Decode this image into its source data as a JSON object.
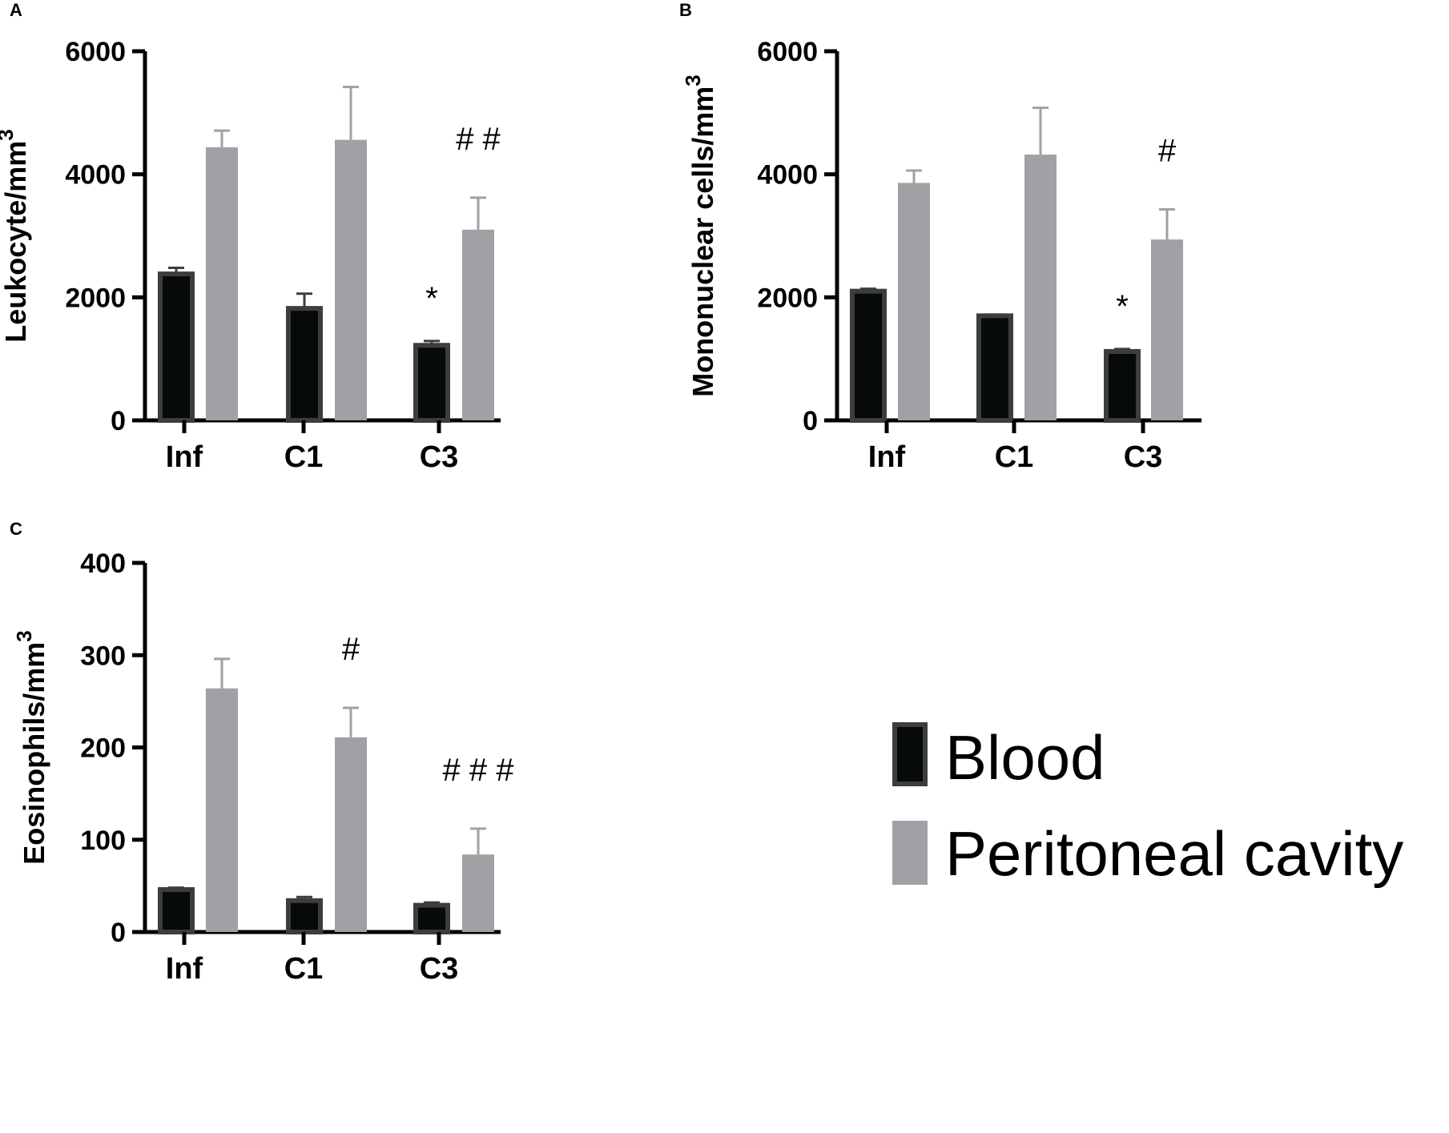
{
  "colors": {
    "blood_fill": "#070a0a",
    "blood_stroke": "#3d3d3d",
    "peritoneal_fill": "#a1a0a5",
    "axis": "#000000"
  },
  "legend": [
    {
      "label": "Blood",
      "color_key": "blood"
    },
    {
      "label": "Peritoneal cavity",
      "color_key": "peritoneal"
    }
  ],
  "chart_data": [
    {
      "panel": "A",
      "type": "bar",
      "ylabel": "Leukocyte/mm",
      "ylabel_sup": "3",
      "ylim": [
        0,
        6000
      ],
      "yticks": [
        "0",
        "2000",
        "4000",
        "6000"
      ],
      "categories": [
        "Inf",
        "C1",
        "C3"
      ],
      "series": [
        {
          "name": "Blood",
          "values": [
            2380,
            1820,
            1220
          ],
          "errors": [
            100,
            240,
            70
          ]
        },
        {
          "name": "Peritoneal cavity",
          "values": [
            4440,
            4560,
            3100
          ],
          "errors": [
            270,
            860,
            520
          ]
        }
      ],
      "annotations": [
        {
          "category": "C3",
          "series": "Blood",
          "text": "*"
        },
        {
          "category": "C3",
          "series": "Peritoneal cavity",
          "text": "# #"
        }
      ]
    },
    {
      "panel": "B",
      "type": "bar",
      "ylabel": "Mononuclear cells/mm",
      "ylabel_sup": "3",
      "ylim": [
        0,
        6000
      ],
      "yticks": [
        "0",
        "2000",
        "4000",
        "6000"
      ],
      "categories": [
        "Inf",
        "C1",
        "C3"
      ],
      "series": [
        {
          "name": "Blood",
          "values": [
            2100,
            1700,
            1120
          ],
          "errors": [
            40,
            20,
            40
          ]
        },
        {
          "name": "Peritoneal cavity",
          "values": [
            3860,
            4320,
            2940
          ],
          "errors": [
            200,
            760,
            490
          ]
        }
      ],
      "annotations": [
        {
          "category": "C3",
          "series": "Blood",
          "text": "*"
        },
        {
          "category": "C3",
          "series": "Peritoneal cavity",
          "text": "#"
        }
      ]
    },
    {
      "panel": "C",
      "type": "bar",
      "ylabel": "Eosinophils/mm",
      "ylabel_sup": "3",
      "ylim": [
        0,
        400
      ],
      "yticks": [
        "0",
        "100",
        "200",
        "300",
        "400"
      ],
      "categories": [
        "Inf",
        "C1",
        "C3"
      ],
      "series": [
        {
          "name": "Blood",
          "values": [
            46,
            34,
            29
          ],
          "errors": [
            2,
            4,
            3
          ]
        },
        {
          "name": "Peritoneal cavity",
          "values": [
            264,
            211,
            84
          ],
          "errors": [
            32,
            32,
            28
          ]
        }
      ],
      "annotations": [
        {
          "category": "C1",
          "series": "Peritoneal cavity",
          "text": "#"
        },
        {
          "category": "C3",
          "series": "Peritoneal cavity",
          "text": "# # #"
        }
      ]
    }
  ]
}
